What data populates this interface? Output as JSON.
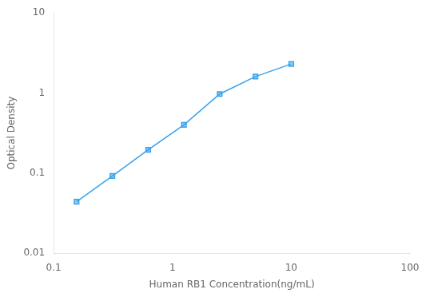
{
  "chart_data": {
    "type": "line",
    "xlabel": "Human RB1 Concentration(ng/mL)",
    "ylabel": "Optical Density",
    "x": [
      0.156,
      0.3125,
      0.625,
      1.25,
      2.5,
      5.0,
      10.0
    ],
    "values": [
      0.044,
      0.092,
      0.195,
      0.4,
      0.97,
      1.6,
      2.3
    ],
    "xlim": [
      0.1,
      100
    ],
    "ylim": [
      0.01,
      10
    ],
    "xticks": [
      0.1,
      1,
      10,
      100
    ],
    "yticks": [
      0.01,
      0.1,
      1,
      10
    ],
    "log": true,
    "grid": false,
    "marker": "square"
  }
}
